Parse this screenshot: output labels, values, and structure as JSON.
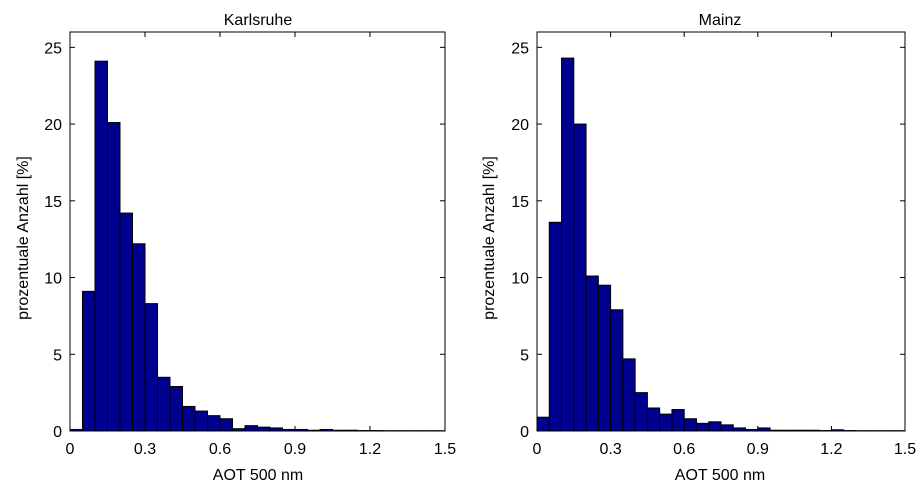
{
  "colors": {
    "bar_fill": "#00008f",
    "bar_stroke": "#000000",
    "axis": "#000000",
    "background": "#ffffff"
  },
  "chart_data": [
    {
      "type": "bar",
      "title": "Karlsruhe",
      "xlabel": "AOT 500 nm",
      "ylabel": "prozentuale Anzahl [%]",
      "xlim": [
        0,
        1.5
      ],
      "ylim": [
        0,
        26
      ],
      "xticks": [
        "0",
        "0.3",
        "0.6",
        "0.9",
        "1.2",
        "1.5"
      ],
      "yticks": [
        "0",
        "5",
        "10",
        "15",
        "20",
        "25"
      ],
      "bin_width": 0.05,
      "x": [
        0.0,
        0.05,
        0.1,
        0.15,
        0.2,
        0.25,
        0.3,
        0.35,
        0.4,
        0.45,
        0.5,
        0.55,
        0.6,
        0.65,
        0.7,
        0.75,
        0.8,
        0.85,
        0.9,
        0.95,
        1.0,
        1.05,
        1.1,
        1.15,
        1.2,
        1.25,
        1.3,
        1.35,
        1.4,
        1.45
      ],
      "values": [
        0.1,
        9.1,
        24.1,
        20.1,
        14.2,
        12.2,
        8.3,
        3.5,
        2.9,
        1.6,
        1.3,
        1.0,
        0.8,
        0.15,
        0.35,
        0.25,
        0.2,
        0.1,
        0.1,
        0.05,
        0.1,
        0.05,
        0.05,
        0.03,
        0.03,
        0.02,
        0.02,
        0.02,
        0.02,
        0.02
      ],
      "grid": false
    },
    {
      "type": "bar",
      "title": "Mainz",
      "xlabel": "AOT 500 nm",
      "ylabel": "prozentuale Anzahl [%]",
      "xlim": [
        0,
        1.5
      ],
      "ylim": [
        0,
        26
      ],
      "xticks": [
        "0",
        "0.3",
        "0.6",
        "0.9",
        "1.2",
        "1.5"
      ],
      "yticks": [
        "0",
        "5",
        "10",
        "15",
        "20",
        "25"
      ],
      "bin_width": 0.05,
      "x": [
        0.0,
        0.05,
        0.1,
        0.15,
        0.2,
        0.25,
        0.3,
        0.35,
        0.4,
        0.45,
        0.5,
        0.55,
        0.6,
        0.65,
        0.7,
        0.75,
        0.8,
        0.85,
        0.9,
        0.95,
        1.0,
        1.05,
        1.1,
        1.15,
        1.2,
        1.25,
        1.3,
        1.35,
        1.4,
        1.45
      ],
      "values": [
        0.9,
        13.6,
        24.3,
        20.0,
        10.1,
        9.5,
        7.9,
        4.7,
        2.5,
        1.5,
        1.1,
        1.4,
        0.8,
        0.5,
        0.6,
        0.4,
        0.2,
        0.1,
        0.2,
        0.05,
        0.05,
        0.05,
        0.05,
        0.03,
        0.08,
        0.03,
        0.02,
        0.02,
        0.02,
        0.02
      ],
      "grid": false
    }
  ]
}
